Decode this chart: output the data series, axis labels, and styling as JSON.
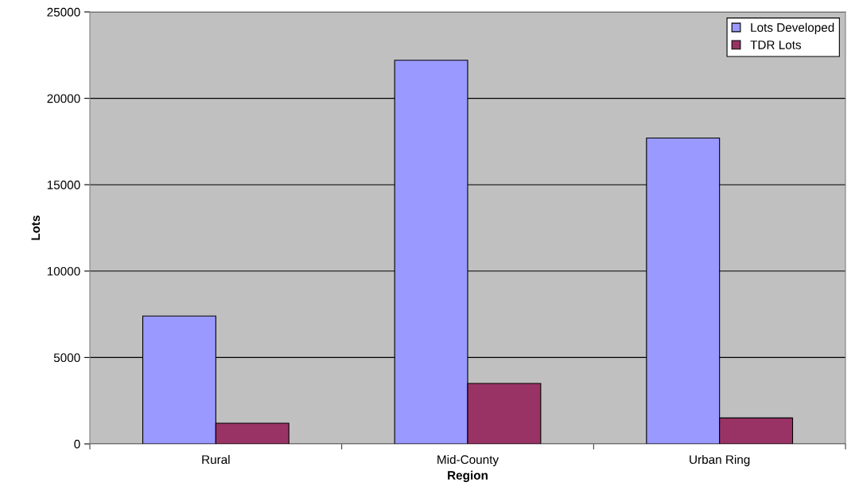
{
  "chart_data": {
    "type": "bar",
    "xlabel": "Region",
    "ylabel": "Lots",
    "categories": [
      "Rural",
      "Mid-County",
      "Urban Ring"
    ],
    "series": [
      {
        "name": "Lots Developed",
        "color": "#9999ff",
        "values": [
          7400,
          22200,
          17700
        ]
      },
      {
        "name": "TDR Lots",
        "color": "#993366",
        "values": [
          1200,
          3500,
          1500
        ]
      }
    ],
    "ylim": [
      0,
      25000
    ],
    "yticks": [
      0,
      5000,
      10000,
      15000,
      20000,
      25000
    ],
    "grid": "y",
    "legend": "top right"
  }
}
